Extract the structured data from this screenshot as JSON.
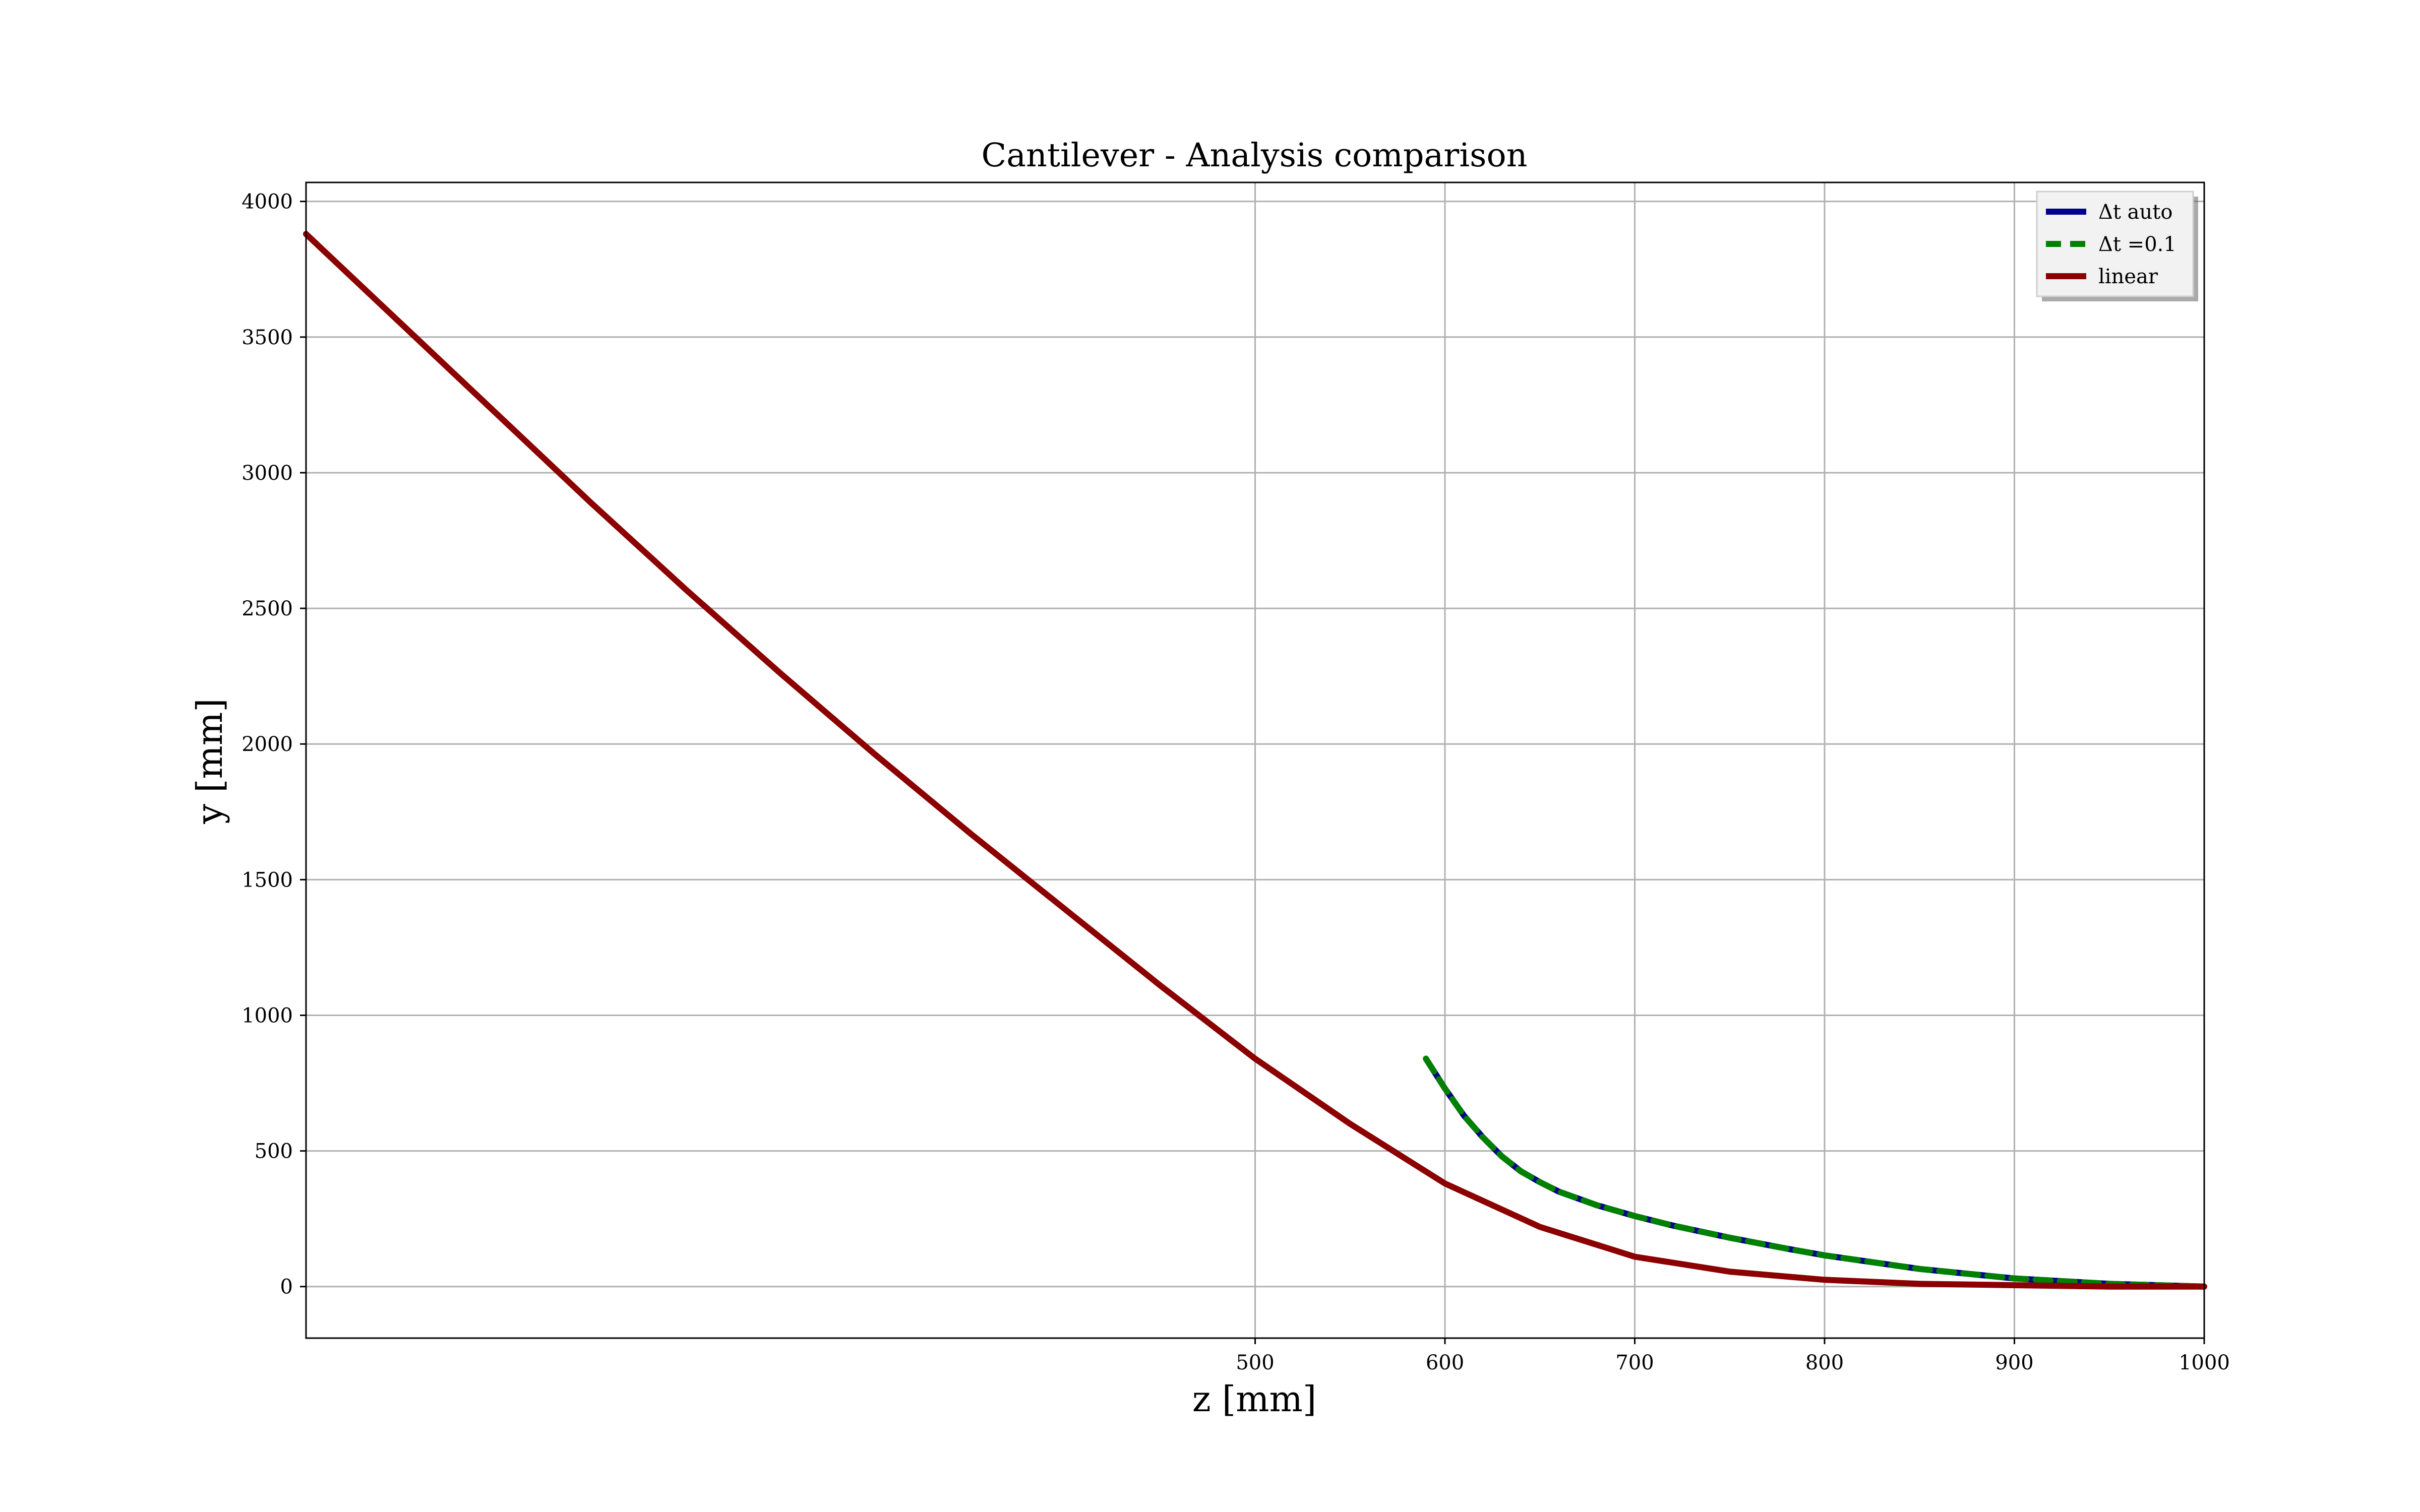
{
  "chart_data": {
    "type": "line",
    "title": "Cantilever - Analysis comparison",
    "xlabel": "z [mm]",
    "ylabel": "y [mm]",
    "xlim": [
      0,
      1000
    ],
    "ylim": [
      -190,
      4070
    ],
    "xticks": [
      500,
      600,
      700,
      800,
      900,
      1000
    ],
    "yticks": [
      0,
      500,
      1000,
      1500,
      2000,
      2500,
      3000,
      3500,
      4000
    ],
    "grid": true,
    "legend_position": "top-right",
    "series": [
      {
        "name": "Δt auto",
        "color": "#00008b",
        "style": "solid",
        "x": [
          590,
          600,
          610,
          620,
          630,
          640,
          650,
          660,
          680,
          700,
          720,
          750,
          780,
          800,
          850,
          900,
          950,
          1000
        ],
        "y": [
          840,
          730,
          630,
          550,
          480,
          425,
          385,
          350,
          300,
          260,
          225,
          180,
          140,
          115,
          65,
          30,
          10,
          0
        ]
      },
      {
        "name": "Δt =0.1",
        "color": "#008000",
        "style": "dashed",
        "x": [
          590,
          600,
          610,
          620,
          630,
          640,
          650,
          660,
          680,
          700,
          720,
          750,
          780,
          800,
          850,
          900,
          950,
          1000
        ],
        "y": [
          840,
          730,
          630,
          550,
          480,
          425,
          385,
          350,
          300,
          260,
          225,
          180,
          140,
          115,
          65,
          30,
          10,
          0
        ]
      },
      {
        "name": "linear",
        "color": "#8b0000",
        "style": "solid",
        "x": [
          0,
          50,
          100,
          150,
          200,
          250,
          300,
          350,
          400,
          450,
          500,
          550,
          600,
          650,
          700,
          750,
          800,
          850,
          900,
          950,
          1000
        ],
        "y": [
          3880,
          3550,
          3220,
          2890,
          2570,
          2260,
          1960,
          1670,
          1390,
          1110,
          840,
          600,
          380,
          220,
          110,
          55,
          25,
          10,
          5,
          0,
          0
        ]
      }
    ]
  }
}
